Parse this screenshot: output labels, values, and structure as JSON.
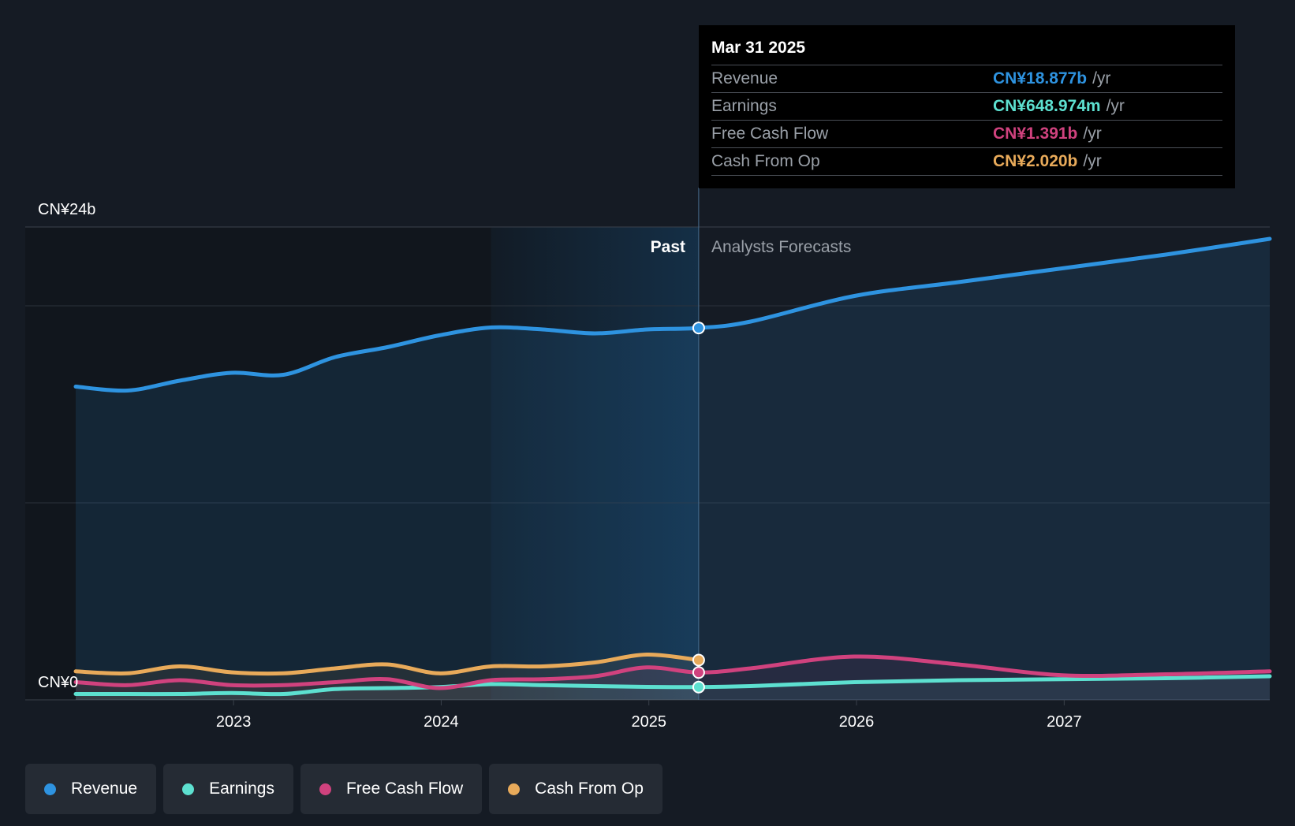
{
  "chart_data": {
    "type": "line",
    "y_axis": {
      "label_top": "CN¥24b",
      "label_bottom": "CN¥0",
      "ylim": [
        0,
        24
      ]
    },
    "x_axis": {
      "ticks": [
        "2023",
        "2024",
        "2025",
        "2026",
        "2027"
      ]
    },
    "regions": {
      "past_label": "Past",
      "forecast_label": "Analysts Forecasts"
    },
    "tooltip": {
      "date": "Mar 31 2025",
      "rows": [
        {
          "label": "Revenue",
          "value": "CN¥18.877b",
          "unit": "/yr",
          "color": "#2e93e0"
        },
        {
          "label": "Earnings",
          "value": "CN¥648.974m",
          "unit": "/yr",
          "color": "#5de0d0"
        },
        {
          "label": "Free Cash Flow",
          "value": "CN¥1.391b",
          "unit": "/yr",
          "color": "#d0427e"
        },
        {
          "label": "Cash From Op",
          "value": "CN¥2.020b",
          "unit": "/yr",
          "color": "#e8aa5a"
        }
      ]
    },
    "x_range": [
      2022.24,
      2027.99
    ],
    "highlight_x": 2025.24,
    "past_band_start": 2024.24,
    "series": [
      {
        "name": "Revenue",
        "color": "#2e93e0",
        "points": [
          [
            2022.24,
            15.9
          ],
          [
            2022.49,
            15.7
          ],
          [
            2022.74,
            16.2
          ],
          [
            2022.99,
            16.6
          ],
          [
            2023.24,
            16.5
          ],
          [
            2023.49,
            17.4
          ],
          [
            2023.74,
            17.9
          ],
          [
            2023.99,
            18.5
          ],
          [
            2024.24,
            18.9
          ],
          [
            2024.49,
            18.8
          ],
          [
            2024.74,
            18.6
          ],
          [
            2024.99,
            18.8
          ],
          [
            2025.24,
            18.877
          ],
          [
            2025.49,
            19.2
          ],
          [
            2025.99,
            20.5
          ],
          [
            2026.49,
            21.2
          ],
          [
            2026.99,
            21.9
          ],
          [
            2027.49,
            22.6
          ],
          [
            2027.99,
            23.4
          ]
        ]
      },
      {
        "name": "Earnings",
        "color": "#5de0d0",
        "points": [
          [
            2022.24,
            0.3
          ],
          [
            2022.49,
            0.3
          ],
          [
            2022.74,
            0.3
          ],
          [
            2022.99,
            0.35
          ],
          [
            2023.24,
            0.3
          ],
          [
            2023.49,
            0.55
          ],
          [
            2023.74,
            0.6
          ],
          [
            2023.99,
            0.65
          ],
          [
            2024.24,
            0.8
          ],
          [
            2024.49,
            0.75
          ],
          [
            2024.74,
            0.7
          ],
          [
            2024.99,
            0.66
          ],
          [
            2025.24,
            0.649
          ],
          [
            2025.49,
            0.7
          ],
          [
            2025.99,
            0.9
          ],
          [
            2026.49,
            1.0
          ],
          [
            2026.99,
            1.05
          ],
          [
            2027.49,
            1.1
          ],
          [
            2027.99,
            1.2
          ]
        ]
      },
      {
        "name": "Free Cash Flow",
        "color": "#d0427e",
        "points": [
          [
            2022.24,
            0.9
          ],
          [
            2022.49,
            0.75
          ],
          [
            2022.74,
            1.0
          ],
          [
            2022.99,
            0.75
          ],
          [
            2023.24,
            0.75
          ],
          [
            2023.49,
            0.9
          ],
          [
            2023.74,
            1.05
          ],
          [
            2023.99,
            0.6
          ],
          [
            2024.24,
            1.0
          ],
          [
            2024.49,
            1.05
          ],
          [
            2024.74,
            1.2
          ],
          [
            2024.99,
            1.65
          ],
          [
            2025.24,
            1.391
          ],
          [
            2025.49,
            1.6
          ],
          [
            2025.99,
            2.2
          ],
          [
            2026.49,
            1.8
          ],
          [
            2026.99,
            1.25
          ],
          [
            2027.49,
            1.3
          ],
          [
            2027.99,
            1.45
          ]
        ]
      },
      {
        "name": "Cash From Op",
        "color": "#e8aa5a",
        "points": [
          [
            2022.24,
            1.45
          ],
          [
            2022.49,
            1.35
          ],
          [
            2022.74,
            1.7
          ],
          [
            2022.99,
            1.4
          ],
          [
            2023.24,
            1.35
          ],
          [
            2023.49,
            1.6
          ],
          [
            2023.74,
            1.8
          ],
          [
            2023.99,
            1.35
          ],
          [
            2024.24,
            1.7
          ],
          [
            2024.49,
            1.7
          ],
          [
            2024.74,
            1.9
          ],
          [
            2024.99,
            2.3
          ],
          [
            2025.24,
            2.02
          ]
        ]
      }
    ]
  },
  "legend": [
    {
      "label": "Revenue",
      "color": "#2e93e0"
    },
    {
      "label": "Earnings",
      "color": "#5de0d0"
    },
    {
      "label": "Free Cash Flow",
      "color": "#d0427e"
    },
    {
      "label": "Cash From Op",
      "color": "#e8aa5a"
    }
  ]
}
